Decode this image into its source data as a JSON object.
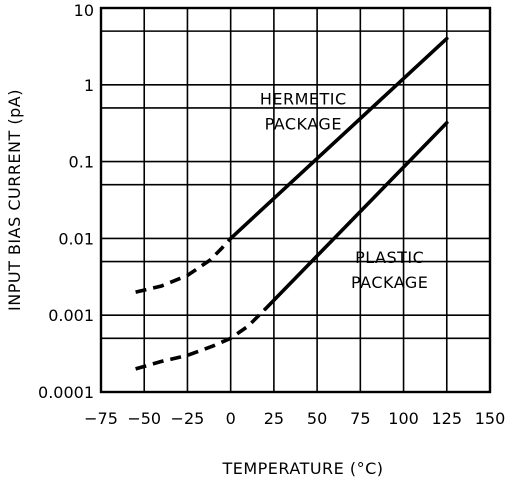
{
  "chart_data": {
    "type": "line",
    "title": "",
    "xlabel": "TEMPERATURE (°C)",
    "ylabel": "INPUT BIAS CURRENT (pA)",
    "xlim": [
      -75,
      150
    ],
    "ylim": [
      0.0001,
      10
    ],
    "y_scale": "log",
    "grid": true,
    "x_ticks": [
      -75,
      -50,
      -25,
      0,
      25,
      50,
      75,
      100,
      125,
      150
    ],
    "x_tick_labels": [
      "−75",
      "−50",
      "−25",
      "0",
      "25",
      "50",
      "75",
      "100",
      "125",
      "150"
    ],
    "y_ticks": [
      0.0001,
      0.001,
      0.01,
      0.1,
      1,
      10
    ],
    "y_tick_labels": [
      "0.0001",
      "0.001",
      "0.01",
      "0.1",
      "1",
      "10"
    ],
    "series": [
      {
        "name": "HERMETIC PACKAGE",
        "label_lines": [
          "HERMETIC",
          "PACKAGE"
        ],
        "label_at": {
          "x": 42,
          "y": 0.55
        },
        "dashed": {
          "x": [
            -55,
            -40,
            -25,
            -12,
            -5,
            0
          ],
          "y": [
            0.002,
            0.0024,
            0.0033,
            0.0052,
            0.0075,
            0.01
          ]
        },
        "solid": {
          "x": [
            0,
            125
          ],
          "y": [
            0.01,
            4.0
          ]
        }
      },
      {
        "name": "PLASTIC PACKAGE",
        "label_lines": [
          "PLASTIC",
          "PACKAGE"
        ],
        "label_at": {
          "x": 92,
          "y": 0.0048
        },
        "dashed": {
          "x": [
            -55,
            -40,
            -25,
            -10,
            0,
            10,
            20
          ],
          "y": [
            0.0002,
            0.00025,
            0.0003,
            0.0004,
            0.0005,
            0.00072,
            0.0012
          ]
        },
        "solid": {
          "x": [
            20,
            125
          ],
          "y": [
            0.0012,
            0.32
          ]
        }
      }
    ]
  }
}
